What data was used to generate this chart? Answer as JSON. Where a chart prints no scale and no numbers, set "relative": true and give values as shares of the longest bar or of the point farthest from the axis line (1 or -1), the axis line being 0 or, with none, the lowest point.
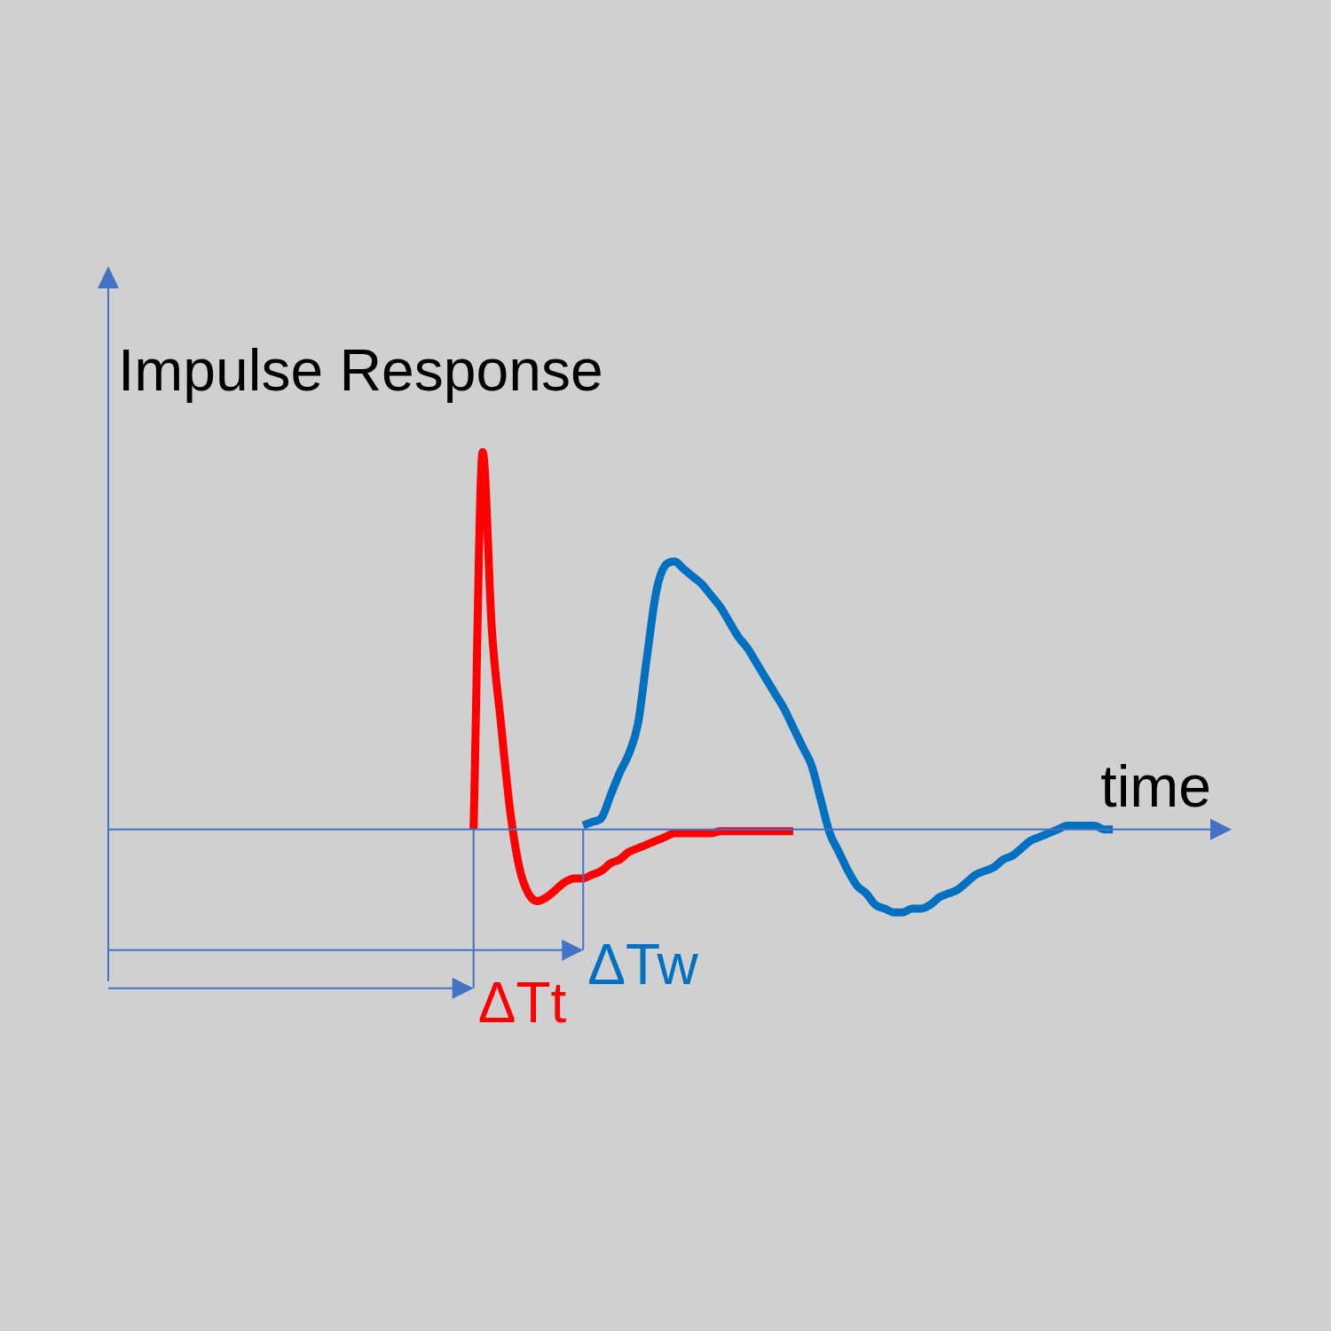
{
  "chart_data": {
    "type": "line",
    "relative": true,
    "xlabel": "time",
    "ylabel": "Impulse Response",
    "categories": [
      null,
      null,
      null,
      null,
      null,
      null,
      null,
      null,
      null,
      null,
      null,
      null,
      null,
      null,
      null,
      null,
      null,
      null,
      null,
      null,
      null,
      null,
      null,
      null,
      null,
      null,
      null,
      null,
      null,
      null,
      null,
      null,
      null,
      null,
      null,
      null,
      null,
      null,
      null,
      null,
      null,
      null,
      null,
      null,
      null,
      null,
      null,
      null,
      null,
      null,
      null,
      null,
      null,
      null,
      null,
      null,
      null,
      null,
      null,
      null,
      null,
      null,
      null,
      null,
      null,
      null,
      null,
      null,
      null,
      null,
      null,
      null,
      null,
      null,
      null,
      null,
      null,
      null,
      null,
      null,
      null,
      null,
      null,
      null,
      null,
      null,
      null,
      null,
      null,
      null,
      null,
      null,
      null,
      null,
      null,
      null,
      null,
      null,
      null,
      null,
      null,
      null,
      null,
      null,
      null,
      null,
      null,
      null,
      null,
      null,
      null,
      null,
      null,
      null,
      null,
      null,
      null,
      null,
      null,
      null,
      null,
      null,
      null,
      null
    ],
    "series": [
      {
        "color": "#ff0000",
        "values": [
          null,
          null,
          null,
          null,
          null,
          null,
          null,
          null,
          null,
          null,
          null,
          null,
          null,
          null,
          null,
          null,
          null,
          null,
          null,
          null,
          null,
          null,
          null,
          null,
          null,
          null,
          null,
          null,
          null,
          null,
          null,
          null,
          null,
          null,
          null,
          null,
          null,
          null,
          null,
          null,
          0,
          1,
          0.53,
          0.28,
          0.05,
          -0.1,
          -0.17,
          -0.19,
          -0.18,
          -0.16,
          -0.14,
          -0.13,
          -0.13,
          -0.12,
          -0.11,
          -0.09,
          -0.08,
          -0.06,
          -0.05,
          -0.04,
          -0.03,
          -0.02,
          -0.01,
          -0.01,
          -0.01,
          -0.01,
          -0.01,
          -0.005,
          -0.005,
          -0.005,
          -0.005,
          -0.005,
          -0.005,
          -0.005,
          -0.005,
          -0.005,
          null,
          null,
          null,
          null,
          null,
          null,
          null,
          null,
          null,
          null,
          null,
          null,
          null,
          null,
          null,
          null,
          null,
          null,
          null,
          null,
          null,
          null,
          null,
          null,
          null,
          null,
          null,
          null,
          null,
          null,
          null,
          null,
          null,
          null,
          null,
          null,
          null,
          null,
          null,
          null,
          null,
          null,
          null,
          null,
          null,
          null,
          null,
          null
        ]
      },
      {
        "color": "#0070c0",
        "values": [
          null,
          null,
          null,
          null,
          null,
          null,
          null,
          null,
          null,
          null,
          null,
          null,
          null,
          null,
          null,
          null,
          null,
          null,
          null,
          null,
          null,
          null,
          null,
          null,
          null,
          null,
          null,
          null,
          null,
          null,
          null,
          null,
          null,
          null,
          null,
          null,
          null,
          null,
          null,
          null,
          null,
          null,
          null,
          null,
          null,
          null,
          null,
          null,
          null,
          null,
          null,
          null,
          0.01,
          0.02,
          0.03,
          0.09,
          0.15,
          0.2,
          0.28,
          0.46,
          0.63,
          0.7,
          0.71,
          0.69,
          0.67,
          0.65,
          0.62,
          0.59,
          0.55,
          0.51,
          0.48,
          0.44,
          0.4,
          0.36,
          0.32,
          0.27,
          0.22,
          0.17,
          0.08,
          -0.01,
          -0.06,
          -0.11,
          -0.15,
          -0.17,
          -0.2,
          -0.21,
          -0.22,
          -0.22,
          -0.21,
          -0.21,
          -0.2,
          -0.18,
          -0.17,
          -0.16,
          -0.14,
          -0.12,
          -0.11,
          -0.1,
          -0.08,
          -0.07,
          -0.05,
          -0.03,
          -0.02,
          -0.01,
          0,
          0.01,
          0.01,
          0.01,
          0.01,
          0,
          0,
          null,
          null,
          null,
          null,
          null,
          null,
          null,
          null,
          null,
          null,
          null,
          null,
          null
        ]
      }
    ],
    "ref_lines": [
      {
        "axis": "y",
        "value": 0,
        "color": "#4472c4"
      }
    ],
    "annotations": [
      "ΔTt",
      "ΔTw"
    ]
  }
}
